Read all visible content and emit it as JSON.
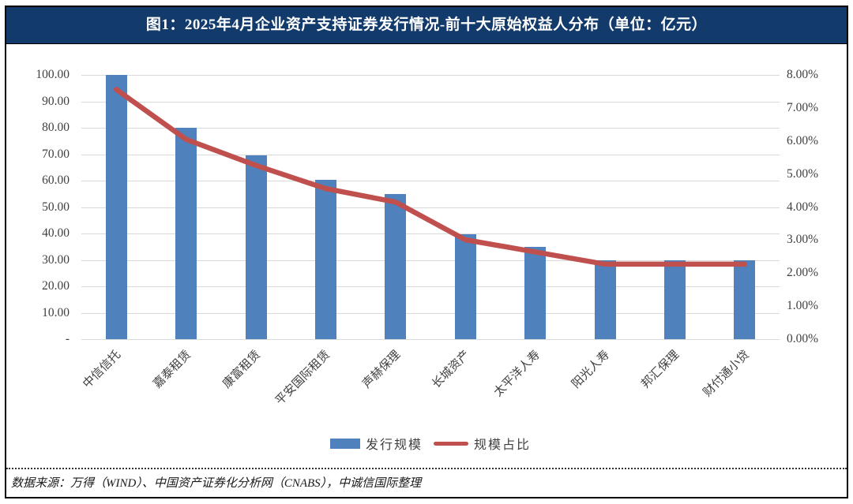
{
  "header": {
    "title": "图1：2025年4月企业资产支持证券发行情况-前十大原始权益人分布（单位：亿元）"
  },
  "footer": {
    "source": "数据来源：万得（WIND）、中国资产证券化分析网（CNABS），中诚信国际整理"
  },
  "legend": {
    "bar_label": "发行规模",
    "line_label": "规模占比"
  },
  "colors": {
    "bar": "#4F81BD",
    "line": "#C0504D",
    "header_bg": "#123A6B",
    "gridline": "#D9D9D9",
    "axis_text": "#3F3F3F"
  },
  "chart_data": {
    "type": "bar",
    "subtype": "bar+line-dual-axis",
    "title": "2025年4月企业资产支持证券发行情况-前十大原始权益人分布（单位：亿元）",
    "categories": [
      "中信信托",
      "嘉泰租赁",
      "康富租赁",
      "平安国际租赁",
      "声赫保理",
      "长城资产",
      "太平洋人寿",
      "阳光人寿",
      "邦汇保理",
      "财付通小贷"
    ],
    "series": [
      {
        "name": "发行规模",
        "type": "bar",
        "axis": "left",
        "unit": "亿元",
        "values": [
          100.0,
          80.0,
          69.5,
          60.3,
          54.8,
          39.8,
          34.8,
          30.0,
          30.0,
          30.0
        ]
      },
      {
        "name": "规模占比",
        "type": "line",
        "axis": "right",
        "unit": "%",
        "values": [
          7.56,
          6.05,
          5.26,
          4.56,
          4.15,
          3.01,
          2.64,
          2.27,
          2.27,
          2.27
        ]
      }
    ],
    "left_axis": {
      "min": 0,
      "max": 100,
      "step": 10,
      "tick_labels": [
        "100.00",
        "90.00",
        "80.00",
        "70.00",
        "60.00",
        "50.00",
        "40.00",
        "30.00",
        "20.00",
        "10.00",
        "-"
      ]
    },
    "right_axis": {
      "min": 0,
      "max": 8,
      "step": 1,
      "tick_labels": [
        "8.00%",
        "7.00%",
        "6.00%",
        "5.00%",
        "4.00%",
        "3.00%",
        "2.00%",
        "1.00%",
        "0.00%"
      ]
    },
    "grid": true,
    "legend_position": "bottom",
    "x_label_rotation_deg": 45
  }
}
